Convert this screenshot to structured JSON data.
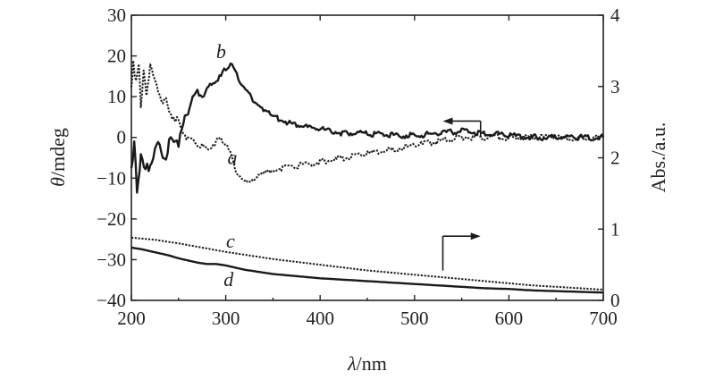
{
  "chart_data": {
    "type": "line",
    "title": "",
    "xlabel": "λ/nm",
    "ylabel_left": "θ/mdeg",
    "ylabel_right": "Abs./a.u.",
    "xlim": [
      200,
      700
    ],
    "ylim_left": [
      -40,
      30
    ],
    "ylim_right": [
      0,
      4
    ],
    "x_ticks": [
      200,
      300,
      400,
      500,
      600,
      700
    ],
    "y_left_ticks": [
      -40,
      -30,
      -20,
      -10,
      0,
      10,
      20,
      30
    ],
    "y_left_tick_labels": [
      "−40",
      "−30",
      "−20",
      "−10",
      "0",
      "10",
      "20",
      "30"
    ],
    "y_right_ticks": [
      0,
      1,
      2,
      3,
      4
    ],
    "grid": false,
    "series": [
      {
        "name": "a",
        "axis": "left",
        "style": "dotted",
        "x": [
          200,
          202,
          205,
          208,
          210,
          213,
          216,
          220,
          225,
          230,
          235,
          240,
          245,
          250,
          255,
          260,
          265,
          270,
          275,
          280,
          285,
          290,
          295,
          300,
          305,
          310,
          315,
          320,
          330,
          340,
          350,
          375,
          400,
          425,
          450,
          475,
          500,
          525,
          550,
          575,
          600,
          625,
          650,
          675,
          700
        ],
        "y": [
          12,
          19,
          13,
          19,
          8,
          16,
          11,
          17,
          13,
          11,
          9,
          7,
          5,
          3,
          1,
          0,
          -1,
          -2,
          -2,
          -3,
          -2,
          -1,
          0,
          -2,
          -4,
          -8,
          -10,
          -11,
          -10,
          -9,
          -8,
          -7,
          -6,
          -5,
          -4,
          -3,
          -2,
          -1,
          0,
          0,
          0,
          0,
          0,
          -0.5,
          0
        ]
      },
      {
        "name": "b",
        "axis": "left",
        "style": "solid",
        "x": [
          200,
          203,
          206,
          210,
          215,
          220,
          225,
          230,
          235,
          240,
          245,
          250,
          255,
          260,
          265,
          270,
          275,
          280,
          285,
          290,
          295,
          300,
          305,
          310,
          315,
          320,
          330,
          340,
          350,
          375,
          400,
          425,
          450,
          475,
          500,
          525,
          550,
          575,
          600,
          625,
          650,
          675,
          700
        ],
        "y": [
          -6,
          -2,
          -12,
          -5,
          -9,
          -6,
          -4,
          -2,
          -5,
          -2,
          0,
          -1,
          3,
          6,
          10,
          11,
          10,
          12,
          13,
          14,
          15,
          17,
          18,
          16,
          14,
          12,
          9,
          7,
          5,
          3,
          2,
          1,
          1,
          0.5,
          0.5,
          1,
          1.5,
          1,
          0.5,
          0,
          0,
          0,
          0
        ]
      },
      {
        "name": "c",
        "axis": "right",
        "style": "dotted",
        "x": [
          200,
          225,
          250,
          275,
          300,
          325,
          350,
          375,
          400,
          425,
          450,
          475,
          500,
          525,
          550,
          575,
          600,
          625,
          650,
          675,
          700
        ],
        "y": [
          0.88,
          0.85,
          0.8,
          0.74,
          0.68,
          0.63,
          0.58,
          0.54,
          0.5,
          0.46,
          0.42,
          0.39,
          0.36,
          0.33,
          0.3,
          0.27,
          0.24,
          0.21,
          0.19,
          0.17,
          0.15
        ]
      },
      {
        "name": "d",
        "axis": "right",
        "style": "solid",
        "x": [
          200,
          210,
          220,
          230,
          240,
          250,
          260,
          270,
          280,
          290,
          300,
          310,
          320,
          330,
          340,
          350,
          375,
          400,
          425,
          450,
          475,
          500,
          525,
          550,
          575,
          600,
          625,
          650,
          675,
          700
        ],
        "y": [
          0.74,
          0.72,
          0.69,
          0.66,
          0.63,
          0.59,
          0.56,
          0.53,
          0.51,
          0.51,
          0.49,
          0.46,
          0.43,
          0.41,
          0.39,
          0.37,
          0.34,
          0.31,
          0.29,
          0.27,
          0.25,
          0.23,
          0.21,
          0.19,
          0.17,
          0.16,
          0.14,
          0.13,
          0.12,
          0.11
        ]
      }
    ],
    "annotations": [
      {
        "text": "a",
        "x": 307,
        "y": -6.5,
        "axis": "left"
      },
      {
        "text": "b",
        "x": 295,
        "y": 19.5,
        "axis": "left"
      },
      {
        "text": "c",
        "x": 305,
        "y": 0.74,
        "axis": "right"
      },
      {
        "text": "d",
        "x": 303,
        "y": 0.2,
        "axis": "right"
      }
    ],
    "arrows": [
      {
        "label": "a-b-left-axis",
        "direction": "left",
        "x_from": 570,
        "x_to": 530,
        "y_top": 4,
        "y_bottom": 0,
        "axis": "left"
      },
      {
        "label": "c-d-right-axis",
        "direction": "right",
        "x_from": 530,
        "x_to": 570,
        "y_top": 0.9,
        "y_bottom": 0.42,
        "axis": "right"
      }
    ]
  }
}
